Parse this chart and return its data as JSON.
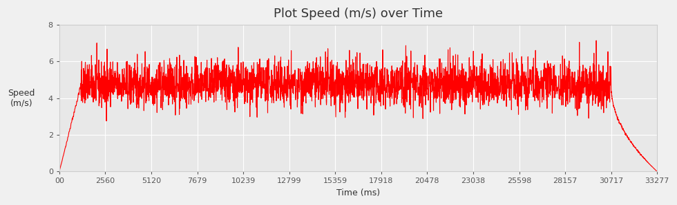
{
  "title": "Plot Speed (m/s) over Time",
  "xlabel": "Time (ms)",
  "ylabel": "Speed\n(m/s)",
  "xlim": [
    0,
    33277
  ],
  "ylim": [
    0,
    8
  ],
  "yticks": [
    0,
    2,
    4,
    6,
    8
  ],
  "xticks": [
    0,
    2560,
    5120,
    7679,
    10239,
    12799,
    15359,
    17918,
    20478,
    23038,
    25598,
    28157,
    30717,
    33277
  ],
  "xticklabels": [
    "00",
    "2560",
    "5120",
    "7679",
    "10239",
    "12799",
    "15359",
    "17918",
    "20478",
    "23038",
    "25598",
    "28157",
    "30717",
    "33277"
  ],
  "line_color": "#ff0000",
  "line_width": 0.8,
  "background_color": "#f0f0f0",
  "plot_bg_color": "#e8e8e8",
  "grid_color": "#ffffff",
  "title_fontsize": 13,
  "label_fontsize": 9,
  "tick_fontsize": 8,
  "total_time_ms": 33277,
  "run_end_ms": 30717,
  "mean_speed": 4.7,
  "noise_amplitude": 0.6,
  "ramp_end_ms": 1200
}
